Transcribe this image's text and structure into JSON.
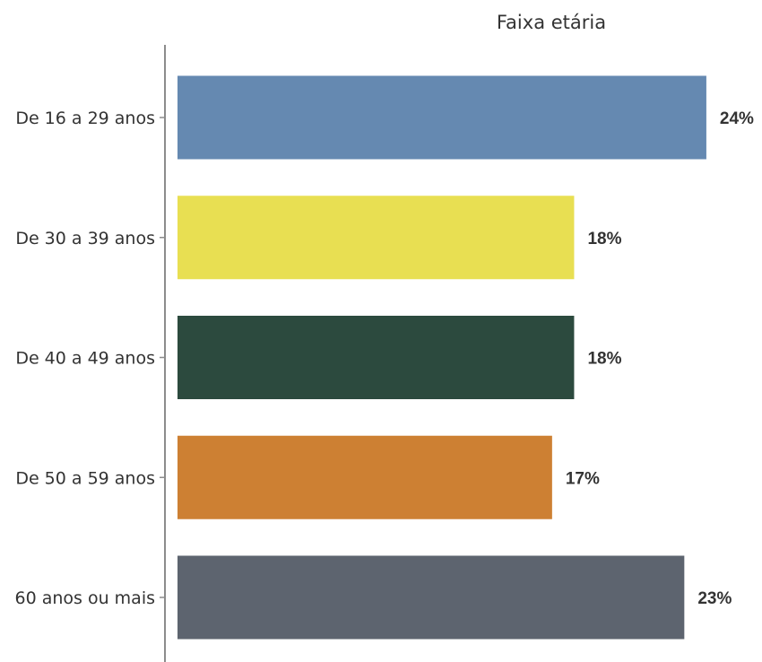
{
  "chart_data": {
    "type": "bar",
    "orientation": "horizontal",
    "title": "Faixa etária",
    "xlabel": "",
    "ylabel": "",
    "categories": [
      "De 16 a 29 anos",
      "De 30 a 39 anos",
      "De 40 a 49 anos",
      "De 50 a 59 anos",
      "60 anos ou mais"
    ],
    "values": [
      24,
      18,
      18,
      17,
      23
    ],
    "value_labels": [
      "24%",
      "18%",
      "18%",
      "17%",
      "23%"
    ],
    "unit": "%",
    "xlim": [
      0,
      25
    ],
    "colors": [
      "#6589b1",
      "#e8df52",
      "#2c4a3e",
      "#cd8033",
      "#5d646f"
    ],
    "axis_color": "#8c8c8c",
    "grid": false,
    "legend": "none"
  }
}
